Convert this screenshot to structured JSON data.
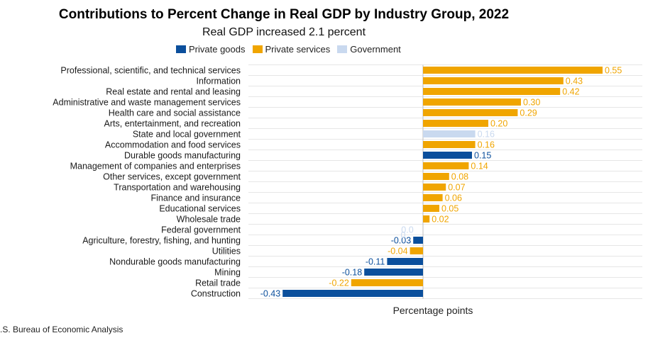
{
  "chart_data": {
    "type": "bar",
    "orientation": "horizontal",
    "title": "Contributions to Percent Change in Real GDP by Industry Group, 2022",
    "subtitle": "Real GDP increased 2.1 percent",
    "xlabel": "Percentage points",
    "source": ".S. Bureau of Economic Analysis",
    "xlim": [
      -0.5,
      0.6
    ],
    "legend_position": "top",
    "legend": [
      {
        "name": "Private goods",
        "color": "#0b4f9c"
      },
      {
        "name": "Private services",
        "color": "#f0a500"
      },
      {
        "name": "Government",
        "color": "#c9d9ef"
      }
    ],
    "bars": [
      {
        "category": "Professional, scientific, and technical services",
        "value": 0.55,
        "label": "0.55",
        "group": "Private services"
      },
      {
        "category": "Information",
        "value": 0.43,
        "label": "0.43",
        "group": "Private services"
      },
      {
        "category": "Real estate and rental and leasing",
        "value": 0.42,
        "label": "0.42",
        "group": "Private services"
      },
      {
        "category": "Administrative and waste management services",
        "value": 0.3,
        "label": "0.30",
        "group": "Private services"
      },
      {
        "category": "Health care and social assistance",
        "value": 0.29,
        "label": "0.29",
        "group": "Private services"
      },
      {
        "category": "Arts, entertainment, and recreation",
        "value": 0.2,
        "label": "0.20",
        "group": "Private services"
      },
      {
        "category": "State and local government",
        "value": 0.16,
        "label": "0.16",
        "group": "Government"
      },
      {
        "category": "Accommodation and food services",
        "value": 0.16,
        "label": "0.16",
        "group": "Private services"
      },
      {
        "category": "Durable goods manufacturing",
        "value": 0.15,
        "label": "0.15",
        "group": "Private goods"
      },
      {
        "category": "Management of companies and enterprises",
        "value": 0.14,
        "label": "0.14",
        "group": "Private services"
      },
      {
        "category": "Other services, except government",
        "value": 0.08,
        "label": "0.08",
        "group": "Private services"
      },
      {
        "category": "Transportation and warehousing",
        "value": 0.07,
        "label": "0.07",
        "group": "Private services"
      },
      {
        "category": "Finance and insurance",
        "value": 0.06,
        "label": "0.06",
        "group": "Private services"
      },
      {
        "category": "Educational services",
        "value": 0.05,
        "label": "0.05",
        "group": "Private services"
      },
      {
        "category": "Wholesale trade",
        "value": 0.02,
        "label": "0.02",
        "group": "Private services"
      },
      {
        "category": "Federal government",
        "value": 0.0,
        "label": "0.0",
        "group": "Government"
      },
      {
        "category": "Agriculture, forestry, fishing, and hunting",
        "value": -0.03,
        "label": "-0.03",
        "group": "Private goods"
      },
      {
        "category": "Utilities",
        "value": -0.04,
        "label": "-0.04",
        "group": "Private services"
      },
      {
        "category": "Nondurable goods manufacturing",
        "value": -0.11,
        "label": "-0.11",
        "group": "Private goods"
      },
      {
        "category": "Mining",
        "value": -0.18,
        "label": "-0.18",
        "group": "Private goods"
      },
      {
        "category": "Retail trade",
        "value": -0.22,
        "label": "-0.22",
        "group": "Private services"
      },
      {
        "category": "Construction",
        "value": -0.43,
        "label": "-0.43",
        "group": "Private goods"
      }
    ],
    "extra_label": {
      "text": "0",
      "group": "Government"
    }
  }
}
